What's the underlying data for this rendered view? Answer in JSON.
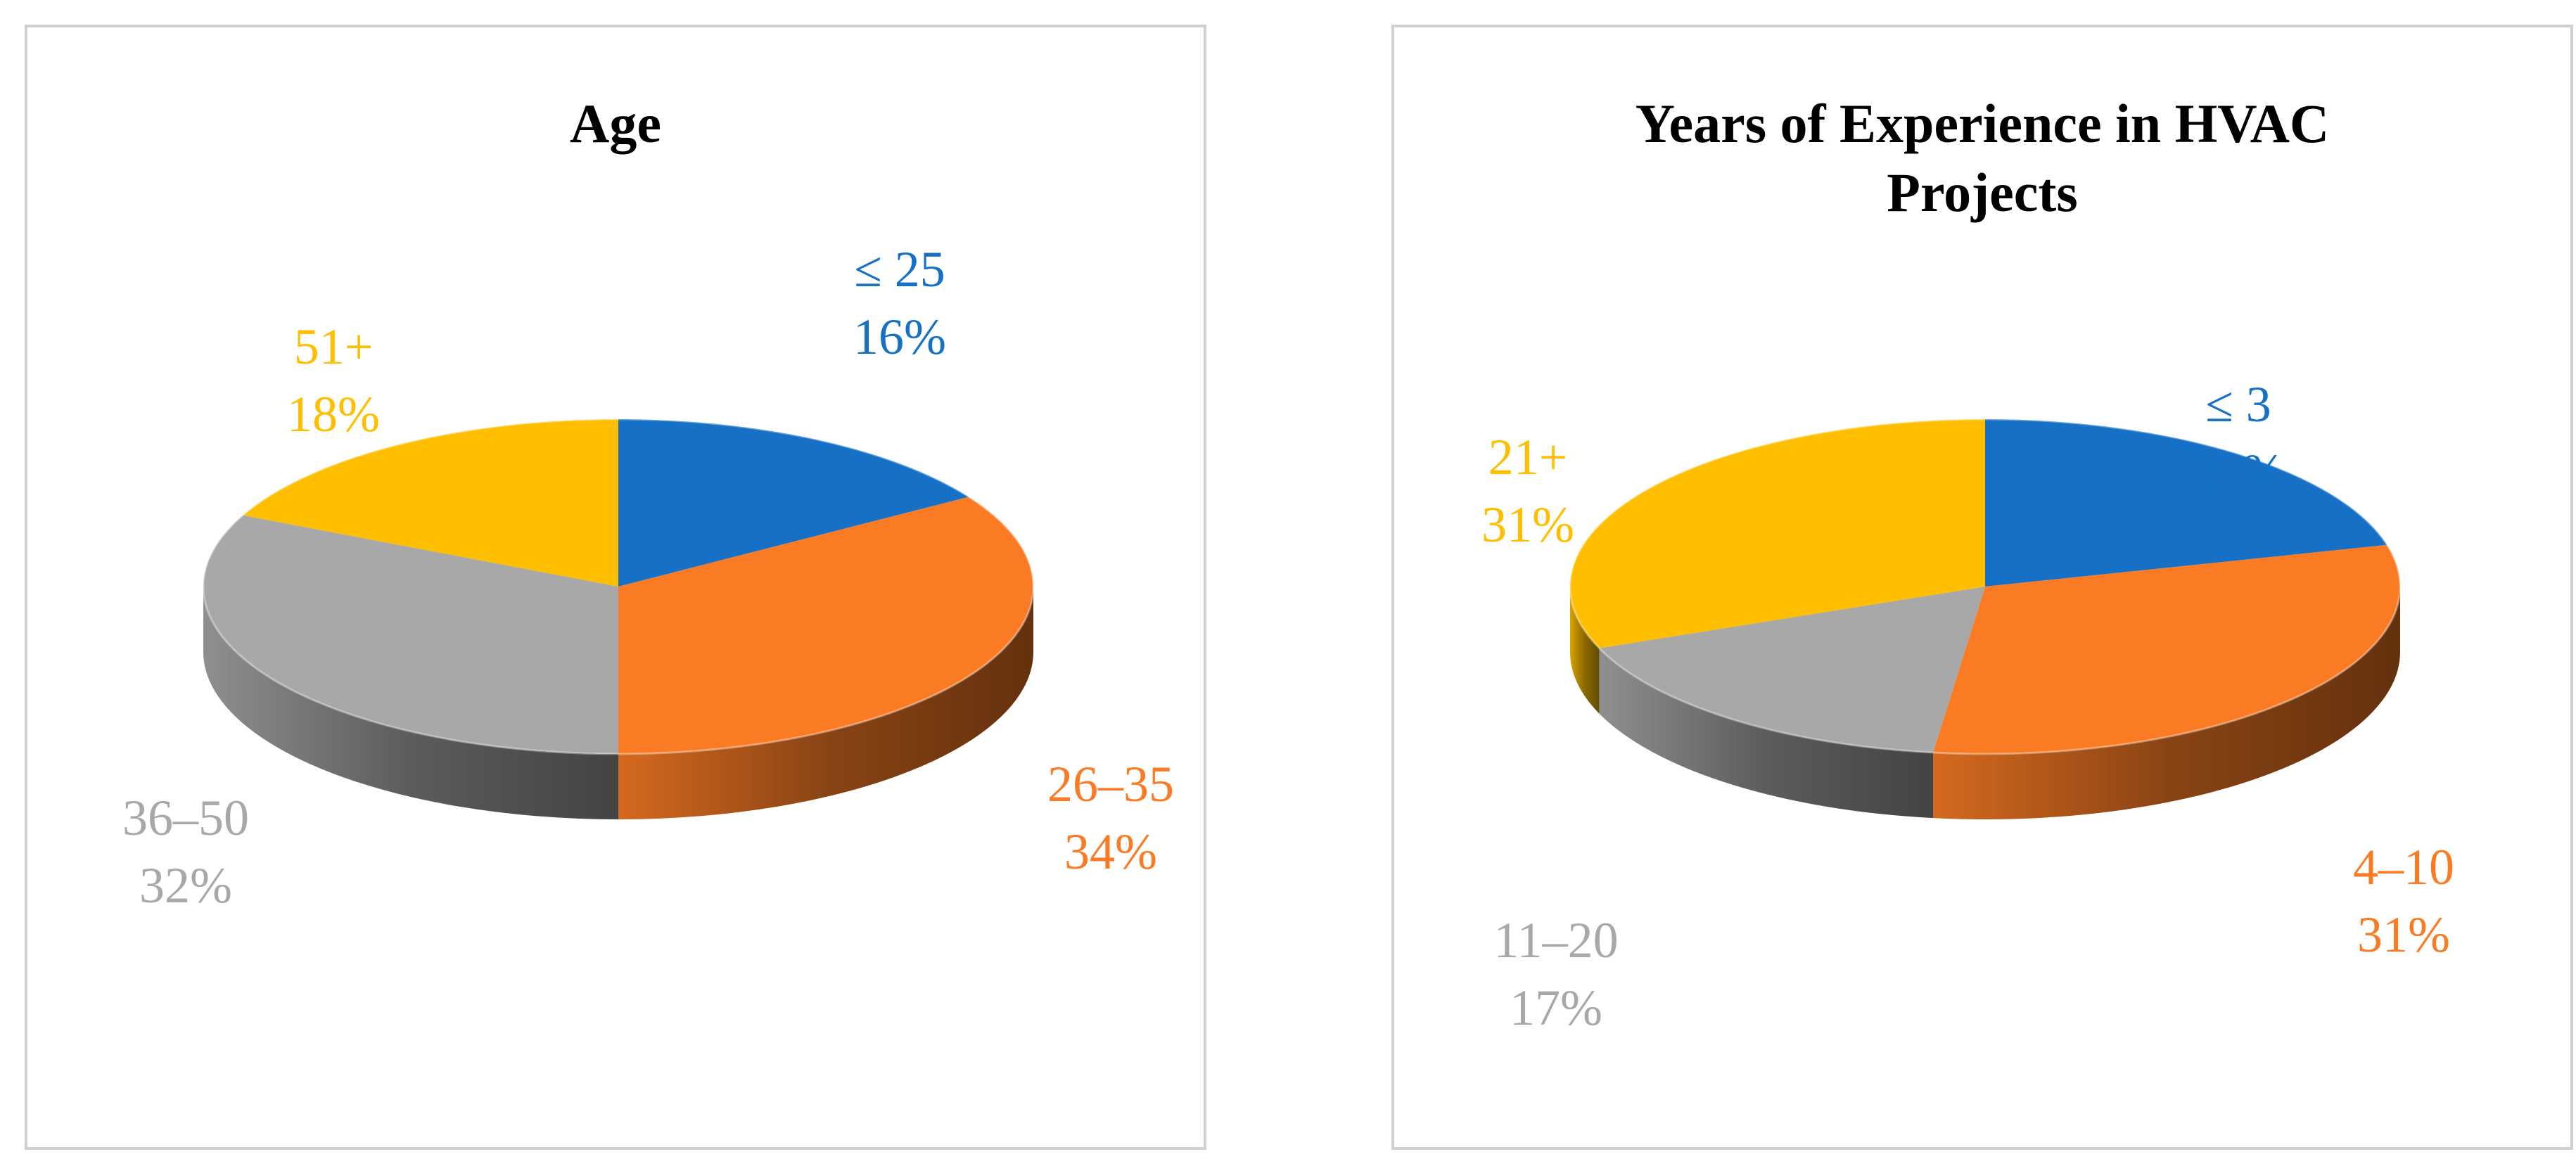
{
  "chart_data": [
    {
      "type": "pie",
      "title": "Age",
      "slices": [
        {
          "category": "≤ 25",
          "value": 16,
          "label": "16%",
          "color": "#1570C6"
        },
        {
          "category": "26–35",
          "value": 34,
          "label": "34%",
          "color": "#FA7B24"
        },
        {
          "category": "36–50",
          "value": 32,
          "label": "32%",
          "color": "#A8A8A8"
        },
        {
          "category": "51+",
          "value": 18,
          "label": "18%",
          "color": "#FFBE00"
        }
      ],
      "legend": "none",
      "style": "3d"
    },
    {
      "type": "pie",
      "title": "Years of Experience in HVAC Projects",
      "slices": [
        {
          "category": "≤ 3",
          "value": 21,
          "label": "21%",
          "color": "#1570C6"
        },
        {
          "category": "4–10",
          "value": 31,
          "label": "31%",
          "color": "#FA7B24"
        },
        {
          "category": "11–20",
          "value": 17,
          "label": "17%",
          "color": "#A8A8A8"
        },
        {
          "category": "21+",
          "value": 31,
          "label": "31%",
          "color": "#FFBE00"
        }
      ],
      "legend": "none",
      "style": "3d"
    }
  ]
}
